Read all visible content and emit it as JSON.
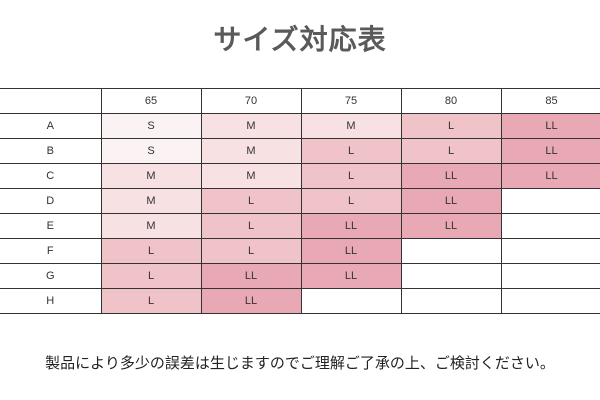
{
  "title": "サイズ対応表",
  "table": {
    "columns": [
      "65",
      "70",
      "75",
      "80",
      "85"
    ],
    "rows": [
      {
        "label": "A",
        "cells": [
          "S",
          "M",
          "M",
          "L",
          "LL"
        ]
      },
      {
        "label": "B",
        "cells": [
          "S",
          "M",
          "L",
          "L",
          "LL"
        ]
      },
      {
        "label": "C",
        "cells": [
          "M",
          "M",
          "L",
          "LL",
          "LL"
        ]
      },
      {
        "label": "D",
        "cells": [
          "M",
          "L",
          "L",
          "LL",
          ""
        ]
      },
      {
        "label": "E",
        "cells": [
          "M",
          "L",
          "LL",
          "LL",
          ""
        ]
      },
      {
        "label": "F",
        "cells": [
          "L",
          "L",
          "LL",
          "",
          ""
        ]
      },
      {
        "label": "G",
        "cells": [
          "L",
          "LL",
          "LL",
          "",
          ""
        ]
      },
      {
        "label": "H",
        "cells": [
          "L",
          "LL",
          "",
          "",
          ""
        ]
      }
    ],
    "size_colors": {
      "S": "#fbf3f3",
      "M": "#f8e1e3",
      "L": "#f0c3c8",
      "LL": "#e8a9b4"
    }
  },
  "footer": "製品により多少の誤差は生じますのでご理解ご了承の上、ご検討ください。"
}
